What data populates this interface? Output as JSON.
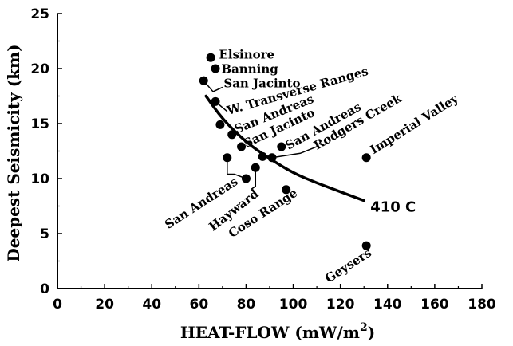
{
  "chart_data": {
    "type": "scatter",
    "xlabel": "HEAT-FLOW (mW/m",
    "xlabel_sup": "2",
    "xlabel_close": ")",
    "ylabel": "Deepest Seismicity (km)",
    "xlim": [
      0,
      180
    ],
    "ylim": [
      0,
      25
    ],
    "x_ticks": [
      "0",
      "20",
      "40",
      "60",
      "80",
      "100",
      "120",
      "140",
      "160",
      "180"
    ],
    "y_ticks": [
      "0",
      "5",
      "10",
      "15",
      "20",
      "25"
    ],
    "grid": false,
    "points": [
      {
        "x": 65,
        "y": 21.0
      },
      {
        "x": 67,
        "y": 20.0
      },
      {
        "x": 62,
        "y": 18.9
      },
      {
        "x": 67,
        "y": 17.0
      },
      {
        "x": 69,
        "y": 14.9
      },
      {
        "x": 74,
        "y": 14.0
      },
      {
        "x": 78,
        "y": 12.9
      },
      {
        "x": 95,
        "y": 12.9
      },
      {
        "x": 72,
        "y": 11.9
      },
      {
        "x": 87,
        "y": 12.0
      },
      {
        "x": 91,
        "y": 11.9
      },
      {
        "x": 131,
        "y": 11.9
      },
      {
        "x": 84,
        "y": 11.0
      },
      {
        "x": 80,
        "y": 10.0
      },
      {
        "x": 97,
        "y": 9.0
      },
      {
        "x": 131,
        "y": 3.9
      }
    ],
    "curve": {
      "name": "410 C",
      "points": [
        [
          63,
          17.5
        ],
        [
          70,
          15.4
        ],
        [
          80,
          13.3
        ],
        [
          90,
          11.8
        ],
        [
          100,
          10.5
        ],
        [
          110,
          9.6
        ],
        [
          120,
          8.8
        ],
        [
          130,
          8.0
        ]
      ]
    },
    "annotations": [
      {
        "text": "Elsinore",
        "x": 68.5,
        "y": 20.9,
        "rot": 0,
        "leader": null
      },
      {
        "text": "Banning",
        "x": 69.5,
        "y": 19.6,
        "rot": 0,
        "leader": null
      },
      {
        "text": "San Jacinto",
        "x": 70.5,
        "y": 18.3,
        "rot": 0,
        "leader": [
          [
            62,
            18.9
          ],
          [
            66,
            17.9
          ],
          [
            70,
            18.3
          ]
        ]
      },
      {
        "text": "W. Transverse Ranges",
        "x": 72.5,
        "y": 15.8,
        "rot": -16,
        "leader": [
          [
            67,
            17.0
          ],
          [
            72,
            16.1
          ]
        ]
      },
      {
        "text": "San Andreas",
        "x": 76,
        "y": 14.1,
        "rot": -22,
        "leader": null
      },
      {
        "text": "San Jacinto",
        "x": 80,
        "y": 12.8,
        "rot": -25,
        "leader": null
      },
      {
        "text": "San Andreas",
        "x": 98,
        "y": 12.6,
        "rot": -29,
        "leader": null
      },
      {
        "text": "Rodgers Creek",
        "x": 110,
        "y": 12.6,
        "rot": -30,
        "leader": [
          [
            91,
            11.9
          ],
          [
            103,
            12.3
          ],
          [
            110,
            12.9
          ]
        ]
      },
      {
        "text": "Imperial Valley",
        "x": 134,
        "y": 12.2,
        "rot": -32,
        "leader": null
      },
      {
        "text": "San Andreas",
        "x": 47,
        "y": 5.4,
        "rot": -33,
        "leader": [
          [
            75,
            10.4
          ],
          [
            72,
            10.4
          ],
          [
            72,
            11.9
          ],
          [
            72,
            10.4
          ],
          [
            75,
            10.4
          ],
          [
            80,
            10.0
          ]
        ]
      },
      {
        "text": "Hayward",
        "x": 66,
        "y": 5.2,
        "rot": -38,
        "leader": [
          [
            84,
            11.0
          ],
          [
            84,
            9.3
          ],
          [
            82,
            9.0
          ]
        ]
      },
      {
        "text": "Coso Range",
        "x": 74,
        "y": 4.6,
        "rot": -33,
        "leader": null
      },
      {
        "text": "Geysers",
        "x": 115,
        "y": 0.5,
        "rot": -33,
        "leader": null
      }
    ]
  }
}
